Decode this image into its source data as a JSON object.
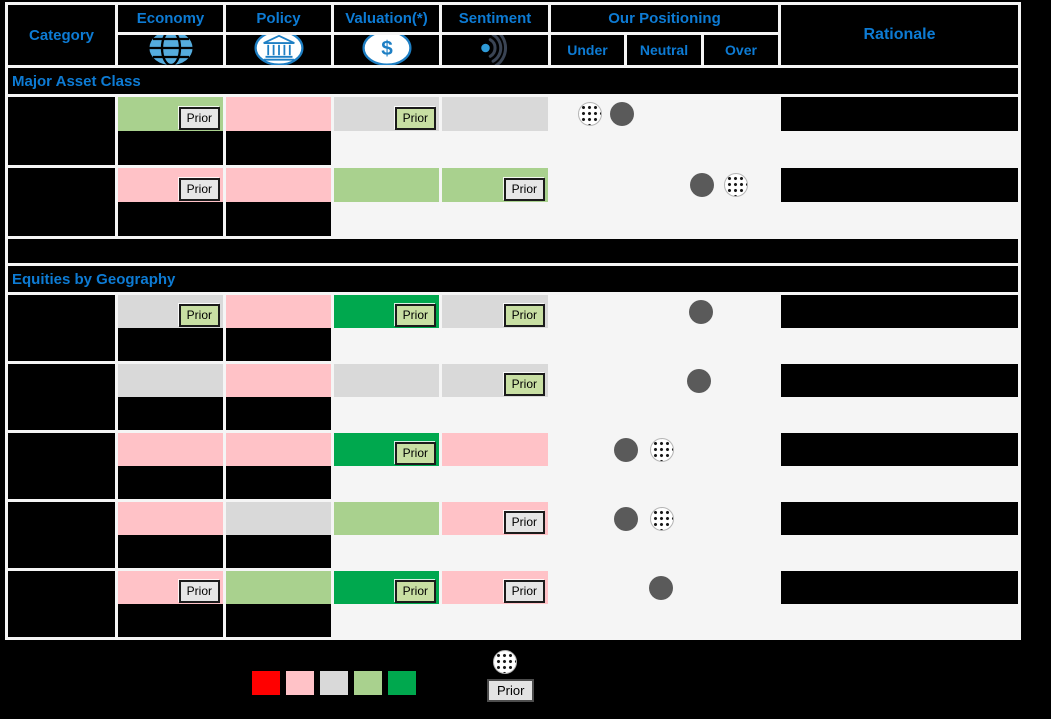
{
  "header": {
    "category": "Category",
    "columns": [
      {
        "label": "Economy",
        "icon": "globe-icon"
      },
      {
        "label": "Policy",
        "icon": "bank-icon"
      },
      {
        "label": "Valuation(*)",
        "icon": "dollar-icon"
      },
      {
        "label": "Sentiment",
        "icon": "signal-waves-icon"
      }
    ],
    "positioning": {
      "title": "Our Positioning",
      "subcolumns": [
        "Under",
        "Neutral",
        "Over"
      ]
    },
    "rationale": "Rationale"
  },
  "colors": {
    "accent_blue": "#0D7BD4",
    "red": "#FF0000",
    "pink": "#FFC2C7",
    "gray": "#D9D9D9",
    "lightgreen": "#A9D18E",
    "green": "#00A84E",
    "prior_badge_gray": "#E6E6E6",
    "prior_badge_green": "#C8DFA3",
    "current_marker": "#5A5A5A",
    "grid_line": "#F5F5F5",
    "background": "#000000"
  },
  "prior_label": "Prior",
  "chart_data": {
    "type": "table",
    "title": "",
    "columns": [
      "Category",
      "Economy",
      "Policy",
      "Valuation(*)",
      "Sentiment",
      "Under",
      "Neutral",
      "Over",
      "Rationale"
    ],
    "color_scale_note": "cell colors encode factor rating; legend scale runs red, pink, gray, lightgreen, green",
    "positioning_axis": {
      "range_pct": [
        0,
        100
      ],
      "under_center_pct": 16,
      "neutral_center_pct": 50,
      "over_center_pct": 84
    },
    "sections": [
      {
        "title": "Major Asset Class",
        "footnote_band": true,
        "rows": [
          {
            "category": "",
            "cells": [
              {
                "factor": "Economy",
                "color": "lightgreen",
                "prior": "gray"
              },
              {
                "factor": "Policy",
                "color": "pink"
              },
              {
                "factor": "Valuation",
                "color": "gray",
                "prior": "green"
              },
              {
                "factor": "Sentiment",
                "color": "gray"
              }
            ],
            "positioning": {
              "current_pct": 31.3,
              "prior_pct": 17.2
            },
            "rationale": ""
          },
          {
            "category": "",
            "cells": [
              {
                "factor": "Economy",
                "color": "pink",
                "prior": "gray"
              },
              {
                "factor": "Policy",
                "color": "pink"
              },
              {
                "factor": "Valuation",
                "color": "lightgreen"
              },
              {
                "factor": "Sentiment",
                "color": "lightgreen",
                "prior": "gray"
              }
            ],
            "positioning": {
              "current_pct": 66.5,
              "prior_pct": 81.5
            },
            "rationale": ""
          }
        ]
      },
      {
        "title": "Equities by Geography",
        "footnote_band": false,
        "rows": [
          {
            "category": "",
            "cells": [
              {
                "factor": "Economy",
                "color": "gray",
                "prior": "green"
              },
              {
                "factor": "Policy",
                "color": "pink"
              },
              {
                "factor": "Valuation",
                "color": "green",
                "prior": "green"
              },
              {
                "factor": "Sentiment",
                "color": "gray",
                "prior": "green"
              }
            ],
            "positioning": {
              "current_pct": 66.1
            },
            "rationale": ""
          },
          {
            "category": "",
            "cells": [
              {
                "factor": "Economy",
                "color": "gray"
              },
              {
                "factor": "Policy",
                "color": "pink"
              },
              {
                "factor": "Valuation",
                "color": "gray"
              },
              {
                "factor": "Sentiment",
                "color": "gray",
                "prior": "green"
              }
            ],
            "positioning": {
              "current_pct": 65.2
            },
            "rationale": ""
          },
          {
            "category": "",
            "cells": [
              {
                "factor": "Economy",
                "color": "pink"
              },
              {
                "factor": "Policy",
                "color": "pink"
              },
              {
                "factor": "Valuation",
                "color": "green",
                "prior": "green"
              },
              {
                "factor": "Sentiment",
                "color": "pink"
              }
            ],
            "positioning": {
              "current_pct": 33.0,
              "prior_pct": 48.9
            },
            "rationale": ""
          },
          {
            "category": "",
            "cells": [
              {
                "factor": "Economy",
                "color": "pink"
              },
              {
                "factor": "Policy",
                "color": "gray"
              },
              {
                "factor": "Valuation",
                "color": "lightgreen"
              },
              {
                "factor": "Sentiment",
                "color": "pink",
                "prior": "gray"
              }
            ],
            "positioning": {
              "current_pct": 33.0,
              "prior_pct": 48.9
            },
            "rationale": ""
          },
          {
            "category": "",
            "cells": [
              {
                "factor": "Economy",
                "color": "pink",
                "prior": "gray"
              },
              {
                "factor": "Policy",
                "color": "lightgreen"
              },
              {
                "factor": "Valuation",
                "color": "green",
                "prior": "green"
              },
              {
                "factor": "Sentiment",
                "color": "pink",
                "prior": "gray"
              }
            ],
            "positioning": {
              "current_pct": 48.5
            },
            "rationale": ""
          }
        ]
      }
    ]
  },
  "legend": {
    "swatch_colors": [
      "red",
      "pink",
      "gray",
      "lightgreen",
      "green"
    ],
    "prior_label": "Prior"
  }
}
